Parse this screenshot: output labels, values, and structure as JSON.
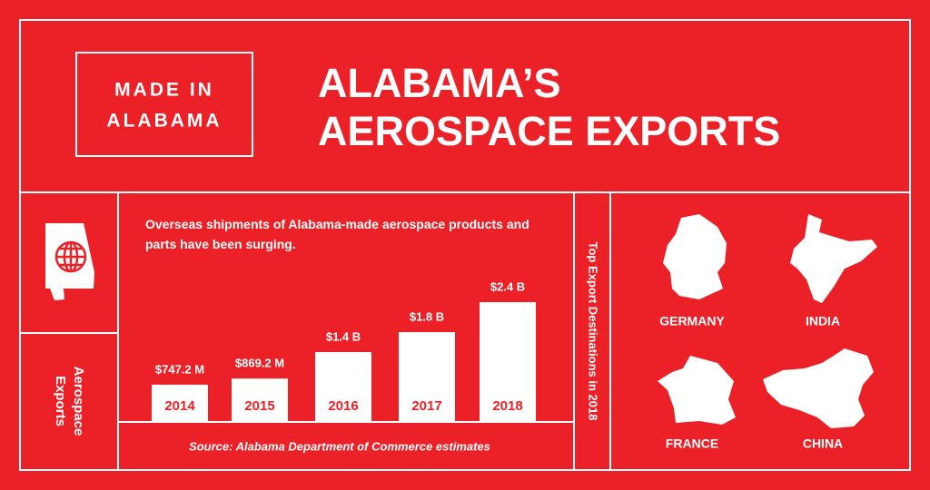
{
  "header": {
    "badge_lines": [
      "MADE IN",
      "ALABAMA"
    ],
    "title_lines": [
      "ALABAMA’S",
      "AEROSPACE EXPORTS"
    ]
  },
  "sidebar": {
    "label_lines": [
      "Aerospace",
      "Exports"
    ]
  },
  "chart_data": {
    "type": "bar",
    "subtitle": "Overseas shipments of Alabama-made aerospace products and parts have been surging.",
    "categories": [
      "2014",
      "2015",
      "2016",
      "2017",
      "2018"
    ],
    "values": [
      747200000,
      869200000,
      1400000000,
      1800000000,
      2400000000
    ],
    "value_labels": [
      "$747.2 M",
      "$869.2 M",
      "$1.4 B",
      "$1.8 B",
      "$2.4 B"
    ],
    "color": "#ffffff",
    "source": "Source: Alabama Department of Commerce estimates"
  },
  "destinations": {
    "title": "Top Export Destinations in 2018",
    "countries": [
      "GERMANY",
      "INDIA",
      "FRANCE",
      "CHINA"
    ]
  }
}
